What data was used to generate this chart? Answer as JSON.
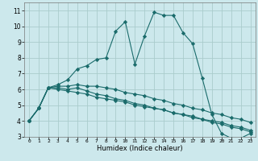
{
  "xlabel": "Humidex (Indice chaleur)",
  "bg_color": "#cce8ec",
  "grid_color": "#aacccc",
  "line_color": "#1a6b6b",
  "xlim": [
    -0.5,
    23.5
  ],
  "ylim": [
    3,
    11.5
  ],
  "xticks": [
    0,
    1,
    2,
    3,
    4,
    5,
    6,
    7,
    8,
    9,
    10,
    11,
    12,
    13,
    14,
    15,
    16,
    17,
    18,
    19,
    20,
    21,
    22,
    23
  ],
  "yticks": [
    3,
    4,
    5,
    6,
    7,
    8,
    9,
    10,
    11
  ],
  "series": [
    [
      4.0,
      4.8,
      6.1,
      6.3,
      6.6,
      7.3,
      7.5,
      7.9,
      8.0,
      9.7,
      10.3,
      7.6,
      9.4,
      10.9,
      10.7,
      10.7,
      9.6,
      8.9,
      6.7,
      4.4,
      3.2,
      2.9,
      2.9,
      3.2
    ],
    [
      4.0,
      4.8,
      6.1,
      6.1,
      6.0,
      6.1,
      5.9,
      5.7,
      5.6,
      5.4,
      5.3,
      5.1,
      5.0,
      4.8,
      4.7,
      4.5,
      4.4,
      4.2,
      4.1,
      3.9,
      3.8,
      3.6,
      3.5,
      3.3
    ],
    [
      4.0,
      4.8,
      6.1,
      6.0,
      5.9,
      5.8,
      5.7,
      5.5,
      5.4,
      5.3,
      5.2,
      5.0,
      4.9,
      4.8,
      4.7,
      4.5,
      4.4,
      4.3,
      4.1,
      4.0,
      3.9,
      3.7,
      3.6,
      3.4
    ],
    [
      4.0,
      4.8,
      6.1,
      6.2,
      6.2,
      6.3,
      6.2,
      6.2,
      6.1,
      6.0,
      5.8,
      5.7,
      5.6,
      5.4,
      5.3,
      5.1,
      5.0,
      4.8,
      4.7,
      4.5,
      4.4,
      4.2,
      4.1,
      3.9
    ]
  ],
  "marker": "D",
  "markersize": 2.2,
  "linewidth": 0.8,
  "xlabel_fontsize": 6.0,
  "tick_fontsize_x": 4.5,
  "tick_fontsize_y": 5.5
}
